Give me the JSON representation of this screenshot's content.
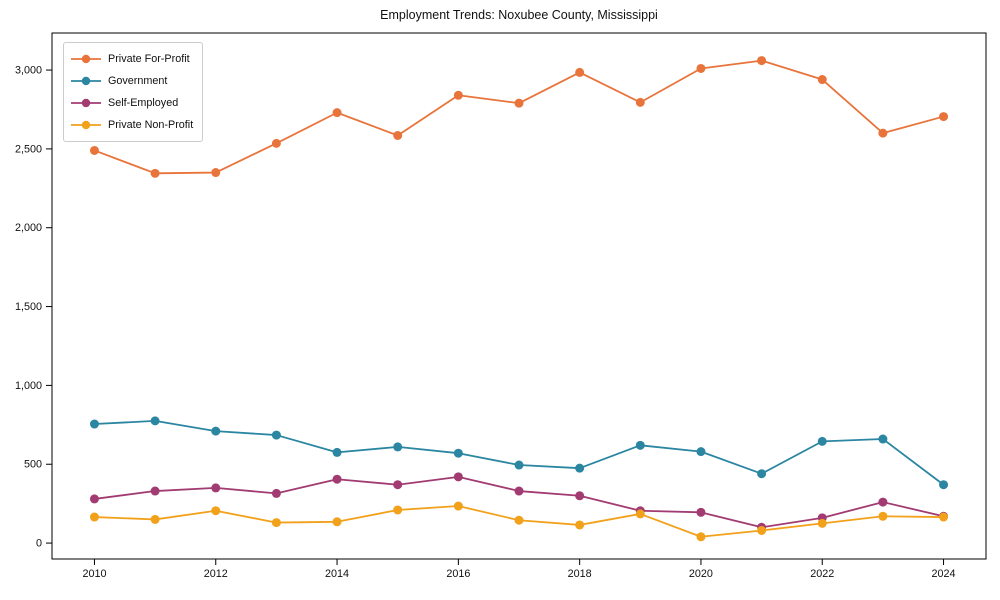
{
  "chart_data": {
    "type": "line",
    "title": "Employment Trends: Noxubee County, Mississippi",
    "xlabel": "",
    "ylabel": "",
    "x": [
      2010,
      2011,
      2012,
      2013,
      2014,
      2015,
      2016,
      2017,
      2018,
      2019,
      2020,
      2021,
      2022,
      2023,
      2024
    ],
    "series": [
      {
        "name": "Private For-Profit",
        "color": "#e8743b",
        "values": [
          2490,
          2345,
          2350,
          2535,
          2730,
          2585,
          2840,
          2790,
          2985,
          2795,
          3010,
          3060,
          2940,
          2600,
          2705
        ]
      },
      {
        "name": "Government",
        "color": "#2b86a2",
        "values": [
          755,
          775,
          710,
          685,
          575,
          610,
          570,
          495,
          475,
          620,
          580,
          440,
          645,
          660,
          370
        ]
      },
      {
        "name": "Self-Employed",
        "color": "#a23b72",
        "values": [
          280,
          330,
          350,
          315,
          405,
          370,
          420,
          330,
          300,
          205,
          195,
          100,
          160,
          260,
          170
        ]
      },
      {
        "name": "Private Non-Profit",
        "color": "#f2a11b",
        "values": [
          165,
          150,
          205,
          130,
          135,
          210,
          235,
          145,
          115,
          185,
          40,
          80,
          125,
          170,
          165
        ]
      }
    ],
    "xticks": {
      "values": [
        2010,
        2012,
        2014,
        2016,
        2018,
        2020,
        2022,
        2024
      ],
      "labels": [
        "2010",
        "2012",
        "2014",
        "2016",
        "2018",
        "2020",
        "2022",
        "2024"
      ]
    },
    "yticks": {
      "values": [
        0,
        500,
        1000,
        1500,
        2000,
        2500,
        3000
      ],
      "labels": [
        "0",
        "500",
        "1,000",
        "1,500",
        "2,000",
        "2,500",
        "3,000"
      ]
    },
    "xlim": [
      2009.3,
      2024.7
    ],
    "ylim": [
      -101,
      3235
    ],
    "grid": false,
    "legend_position": "upper-left",
    "axis_color": "#000000",
    "background_color": "#ffffff"
  }
}
